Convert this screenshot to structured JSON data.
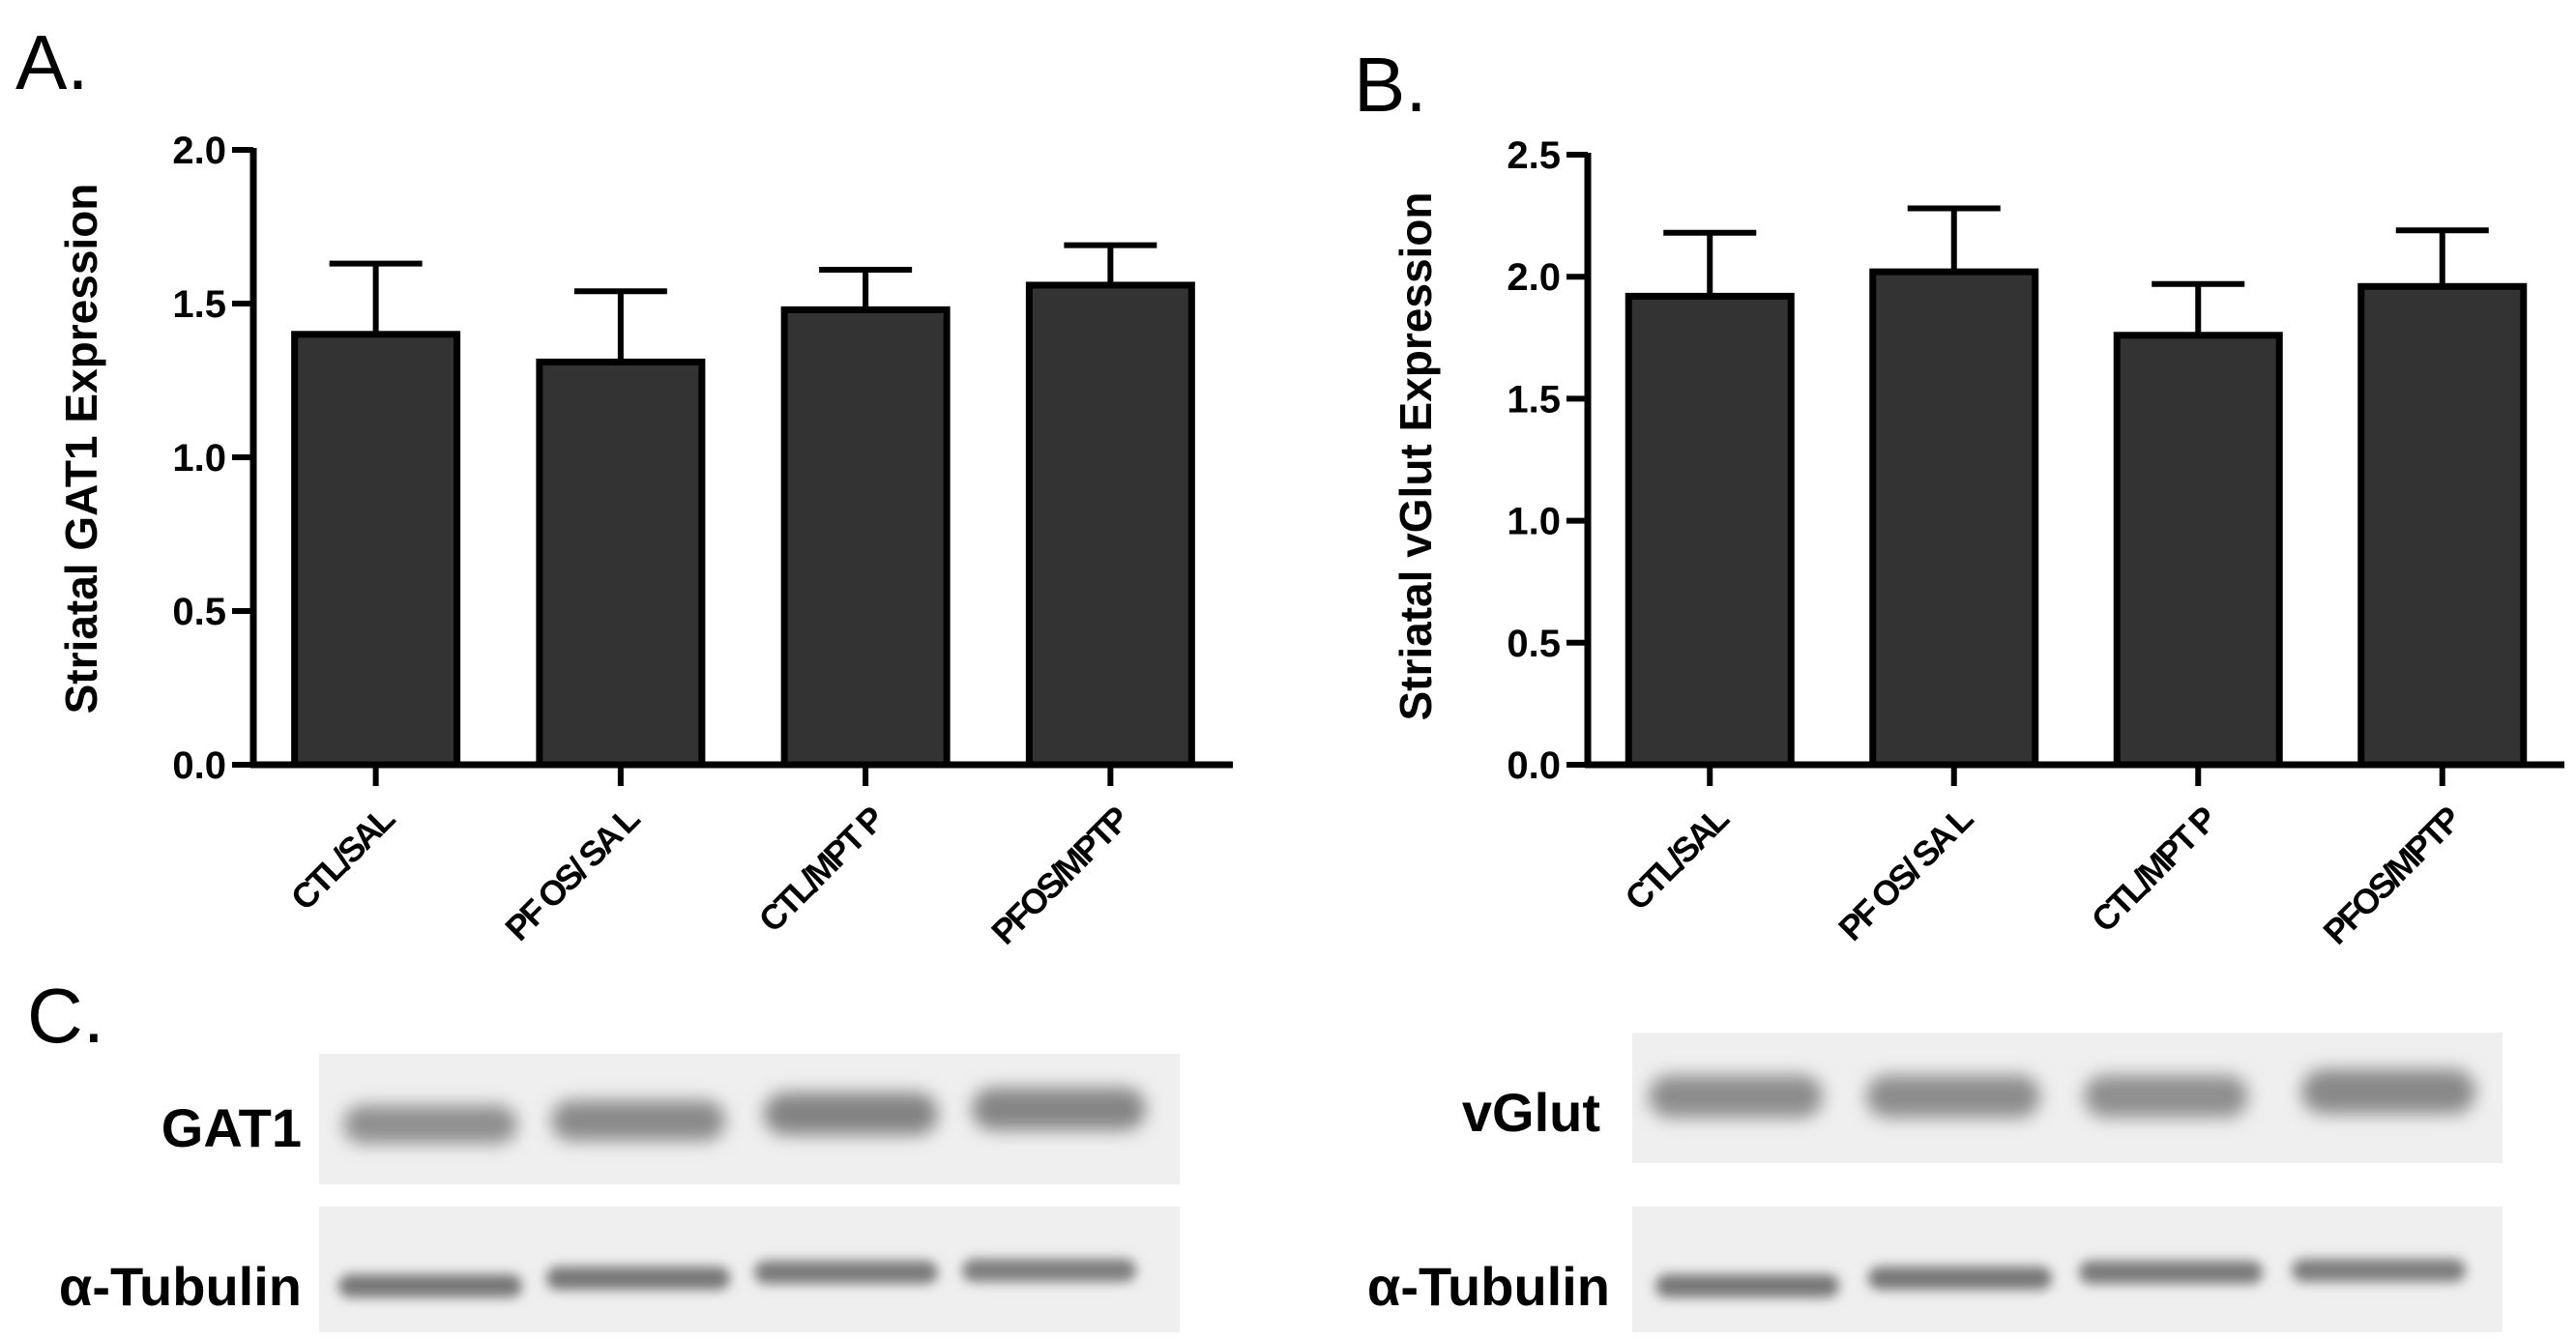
{
  "panels": {
    "a": "A.",
    "b": "B.",
    "c": "C."
  },
  "chart_data": [
    {
      "type": "bar",
      "ylabel": "Striatal GAT1 Expression",
      "categories": [
        "CTL/SAL",
        "PF OS/ SA L",
        "CTL/MPT  P",
        "PFOS/MPTP"
      ],
      "values": [
        1.4,
        1.31,
        1.48,
        1.56
      ],
      "errors": [
        0.23,
        0.23,
        0.13,
        0.13
      ],
      "ylim": [
        0,
        2.0
      ],
      "yticks": [
        "0.0",
        "0.5",
        "1.0",
        "1.5",
        "2.0"
      ],
      "bar_color": "#333333"
    },
    {
      "type": "bar",
      "ylabel": "Striatal vGlut Expression",
      "categories": [
        "CTL/SAL",
        "PF OS/ SA L",
        "CTL/MPT  P",
        "PFOS/MPTP"
      ],
      "values": [
        1.92,
        2.02,
        1.76,
        1.96
      ],
      "errors": [
        0.26,
        0.26,
        0.21,
        0.23
      ],
      "ylim": [
        0,
        2.5
      ],
      "yticks": [
        "0.0",
        "0.5",
        "1.0",
        "1.5",
        "2.0",
        "2.5"
      ],
      "bar_color": "#333333"
    }
  ],
  "blots": {
    "left": {
      "protein": "GAT1",
      "control": "α-Tubulin"
    },
    "right": {
      "protein": "vGlut",
      "control": "α-Tubulin"
    }
  }
}
